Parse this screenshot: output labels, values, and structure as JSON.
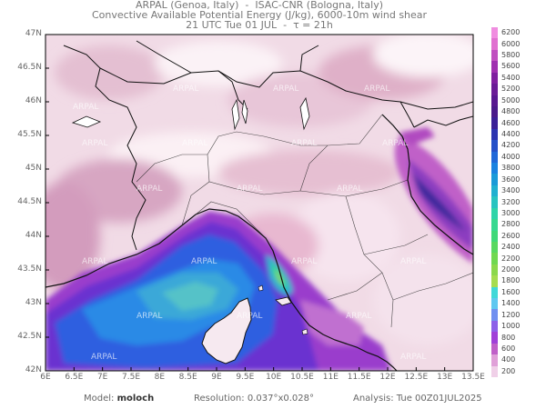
{
  "header": {
    "line1": "ARPAL (Genoa, Italy)  -  ISAC-CNR (Bologna, Italy)",
    "line2": "Convective Available Potential Energy (J/kg), 6000-10m wind shear",
    "line3": "21 UTC Tue 01 JUL  -  τ = 21h"
  },
  "axes": {
    "lat_labels": [
      "47N",
      "46.5N",
      "46N",
      "45.5N",
      "45N",
      "44.5N",
      "44N",
      "43.5N",
      "43N",
      "42.5N",
      "42N"
    ],
    "lon_labels": [
      "6E",
      "6.5E",
      "7E",
      "7.5E",
      "8E",
      "8.5E",
      "9E",
      "9.5E",
      "10E",
      "10.5E",
      "11E",
      "11.5E",
      "12E",
      "12.5E",
      "13E",
      "13.5E"
    ]
  },
  "watermark": "ARPAL",
  "colorbar": {
    "unit_values": [
      "6200",
      "6000",
      "5800",
      "5600",
      "5400",
      "5200",
      "5000",
      "4800",
      "4600",
      "4400",
      "4200",
      "4000",
      "3800",
      "3600",
      "3400",
      "3200",
      "3000",
      "2800",
      "2600",
      "2400",
      "2200",
      "2000",
      "1800",
      "1600",
      "1400",
      "1200",
      "1000",
      "800",
      "600",
      "400",
      "200"
    ],
    "colors": [
      "#f08de0",
      "#e070d0",
      "#c050c0",
      "#a030b0",
      "#8020a0",
      "#6a1c96",
      "#581890",
      "#4a1a8a",
      "#3a2096",
      "#2c34b0",
      "#2450c8",
      "#2068d8",
      "#1a82e0",
      "#1a9ad8",
      "#20b0d0",
      "#28c4c0",
      "#30d4a8",
      "#38d890",
      "#40d878",
      "#58d860",
      "#70d850",
      "#8cd84c",
      "#a6dc50",
      "#40d8d8",
      "#60c8f0",
      "#7090f0",
      "#8c60e8",
      "#a040d8",
      "#c060c8",
      "#e0a0d8",
      "#f0d0e8"
    ]
  },
  "footer": {
    "model_label": "Model:",
    "model_value": "moloch",
    "resolution_label": "Resolution:",
    "resolution_value": "0.037°x0.028°",
    "analysis_label": "Analysis:",
    "analysis_value": "Tue 00Z01JUL2025"
  }
}
